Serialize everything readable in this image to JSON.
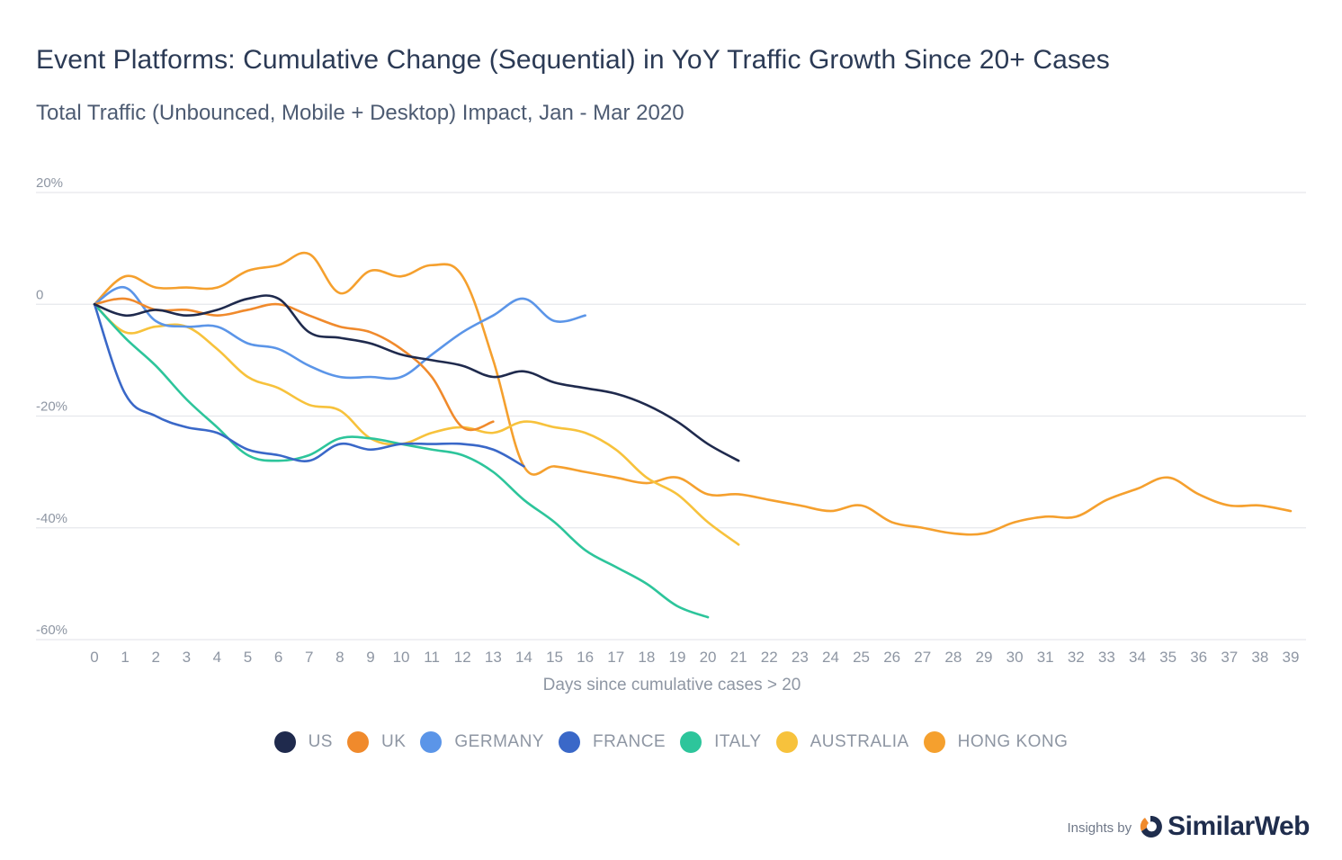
{
  "chart_data": {
    "type": "line",
    "title": "Event Platforms: Cumulative Change (Sequential) in YoY Traffic Growth Since 20+ Cases",
    "subtitle": "Total Traffic (Unbounced, Mobile + Desktop) Impact, Jan - Mar 2020",
    "xlabel": "Days since cumulative cases > 20",
    "ylabel": "",
    "xlim": [
      0,
      39
    ],
    "ylim": [
      -60,
      20
    ],
    "yticks": [
      20,
      0,
      -20,
      -40,
      -60
    ],
    "ytick_labels": [
      "20%",
      "0",
      "-20%",
      "-40%",
      "-60%"
    ],
    "xticks": [
      "0",
      "1",
      "2",
      "3",
      "4",
      "5",
      "6",
      "7",
      "8",
      "9",
      "10",
      "11",
      "12",
      "13",
      "14",
      "15",
      "16",
      "17",
      "18",
      "19",
      "20",
      "21",
      "22",
      "23",
      "24",
      "25",
      "26",
      "27",
      "28",
      "29",
      "30",
      "31",
      "32",
      "33",
      "34",
      "35",
      "36",
      "37",
      "38",
      "39"
    ],
    "grid": true,
    "legend_position": "bottom-center",
    "series": [
      {
        "name": "US",
        "color": "#1f2a4d",
        "x": [
          0,
          1,
          2,
          3,
          4,
          5,
          6,
          7,
          8,
          9,
          10,
          11,
          12,
          13,
          14,
          15,
          16,
          17,
          18,
          19,
          20,
          21
        ],
        "values": [
          0,
          -2,
          -1,
          -2,
          -1,
          1,
          1,
          -5,
          -6,
          -7,
          -9,
          -10,
          -11,
          -13,
          -12,
          -14,
          -15,
          -16,
          -18,
          -21,
          -25,
          -28
        ]
      },
      {
        "name": "UK",
        "color": "#f08a2c",
        "x": [
          0,
          1,
          2,
          3,
          4,
          5,
          6,
          7,
          8,
          9,
          10,
          11,
          12,
          13
        ],
        "values": [
          0,
          1,
          -1,
          -1,
          -2,
          -1,
          0,
          -2,
          -4,
          -5,
          -8,
          -13,
          -22,
          -21
        ]
      },
      {
        "name": "GERMANY",
        "color": "#5b95e8",
        "x": [
          0,
          1,
          2,
          3,
          4,
          5,
          6,
          7,
          8,
          9,
          10,
          11,
          12,
          13,
          14,
          15,
          16
        ],
        "values": [
          0,
          3,
          -3,
          -4,
          -4,
          -7,
          -8,
          -11,
          -13,
          -13,
          -13,
          -9,
          -5,
          -2,
          1,
          -3,
          -2
        ]
      },
      {
        "name": "FRANCE",
        "color": "#3a68c8",
        "x": [
          0,
          1,
          2,
          3,
          4,
          5,
          6,
          7,
          8,
          9,
          10,
          11,
          12,
          13,
          14
        ],
        "values": [
          0,
          -16,
          -20,
          -22,
          -23,
          -26,
          -27,
          -28,
          -25,
          -26,
          -25,
          -25,
          -25,
          -26,
          -29
        ]
      },
      {
        "name": "ITALY",
        "color": "#2dc59b",
        "x": [
          0,
          1,
          2,
          3,
          4,
          5,
          6,
          7,
          8,
          9,
          10,
          11,
          12,
          13,
          14,
          15,
          16,
          17,
          18,
          19,
          20
        ],
        "values": [
          0,
          -6,
          -11,
          -17,
          -22,
          -27,
          -28,
          -27,
          -24,
          -24,
          -25,
          -26,
          -27,
          -30,
          -35,
          -39,
          -44,
          -47,
          -50,
          -54,
          -56
        ]
      },
      {
        "name": "AUSTRALIA",
        "color": "#f7c23c",
        "x": [
          0,
          1,
          2,
          3,
          4,
          5,
          6,
          7,
          8,
          9,
          10,
          11,
          12,
          13,
          14,
          15,
          16,
          17,
          18,
          19,
          20,
          21
        ],
        "values": [
          0,
          -5,
          -4,
          -4,
          -8,
          -13,
          -15,
          -18,
          -19,
          -24,
          -25,
          -23,
          -22,
          -23,
          -21,
          -22,
          -23,
          -26,
          -31,
          -34,
          -39,
          -43
        ]
      },
      {
        "name": "HONG KONG",
        "color": "#f5a02e",
        "x": [
          0,
          1,
          2,
          3,
          4,
          5,
          6,
          7,
          8,
          9,
          10,
          11,
          12,
          13,
          14,
          15,
          16,
          17,
          18,
          19,
          20,
          21,
          22,
          23,
          24,
          25,
          26,
          27,
          28,
          29,
          30,
          31,
          32,
          33,
          34,
          35,
          36,
          37,
          38,
          39
        ],
        "values": [
          0,
          5,
          3,
          3,
          3,
          6,
          7,
          9,
          2,
          6,
          5,
          7,
          5,
          -10,
          -29,
          -29,
          -30,
          -31,
          -32,
          -31,
          -34,
          -34,
          -35,
          -36,
          -37,
          -36,
          -39,
          -40,
          -41,
          -41,
          -39,
          -38,
          -38,
          -35,
          -33,
          -31,
          -34,
          -36,
          -36,
          -37
        ]
      }
    ]
  },
  "branding": {
    "prefix": "Insights by",
    "name": "SimilarWeb"
  }
}
